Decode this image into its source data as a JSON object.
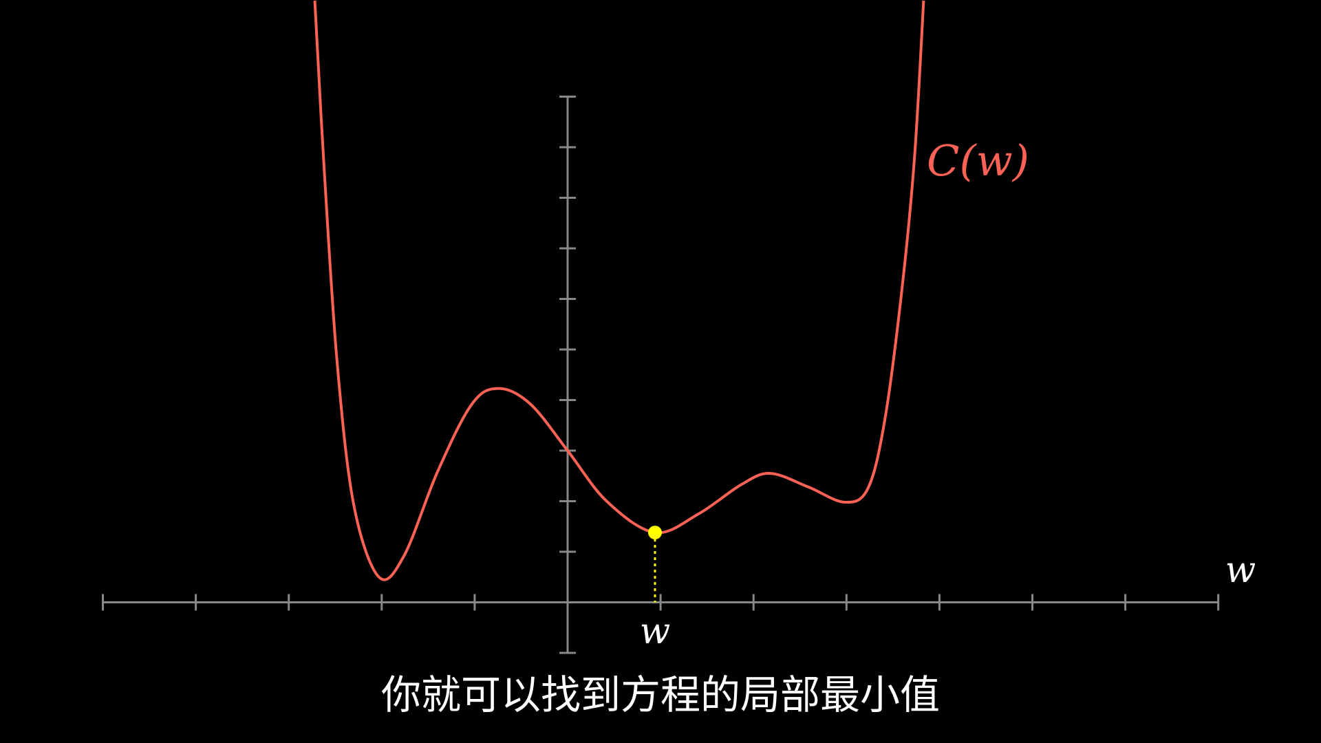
{
  "chart_data": {
    "type": "line",
    "x": [
      -2.72,
      -2.62,
      -2.48,
      -2.3,
      -2.03,
      -1.76,
      -1.4,
      -1.03,
      -0.74,
      -0.4,
      0,
      0.42,
      0.94,
      1.41,
      1.87,
      2.18,
      2.59,
      2.98,
      3.23,
      3.41,
      3.59,
      3.73,
      3.83
    ],
    "series": [
      {
        "name": "C(w)",
        "color": "#fc6255",
        "values": [
          11.9,
          8.6,
          4.75,
          1.92,
          0.5,
          0.92,
          2.58,
          3.92,
          4.23,
          3.92,
          3.0,
          2.0,
          1.38,
          1.75,
          2.33,
          2.55,
          2.28,
          1.98,
          2.25,
          3.58,
          6.08,
          8.75,
          11.9
        ]
      }
    ],
    "xlabel": "w",
    "point": {
      "x": 0.94,
      "y": 1.38,
      "label": "w",
      "color": "#ffff00"
    },
    "xlim": [
      -5,
      7
    ],
    "ylim": [
      -1,
      10
    ],
    "xticks": [
      -5,
      -4,
      -3,
      -2,
      -1,
      0,
      1,
      2,
      3,
      4,
      5,
      6,
      7
    ],
    "yticks": [
      -1,
      0,
      1,
      2,
      3,
      4,
      5,
      6,
      7,
      8,
      9,
      10
    ],
    "axis_color": "#888888"
  },
  "subtitle": "你就可以找到方程的局部最小值"
}
